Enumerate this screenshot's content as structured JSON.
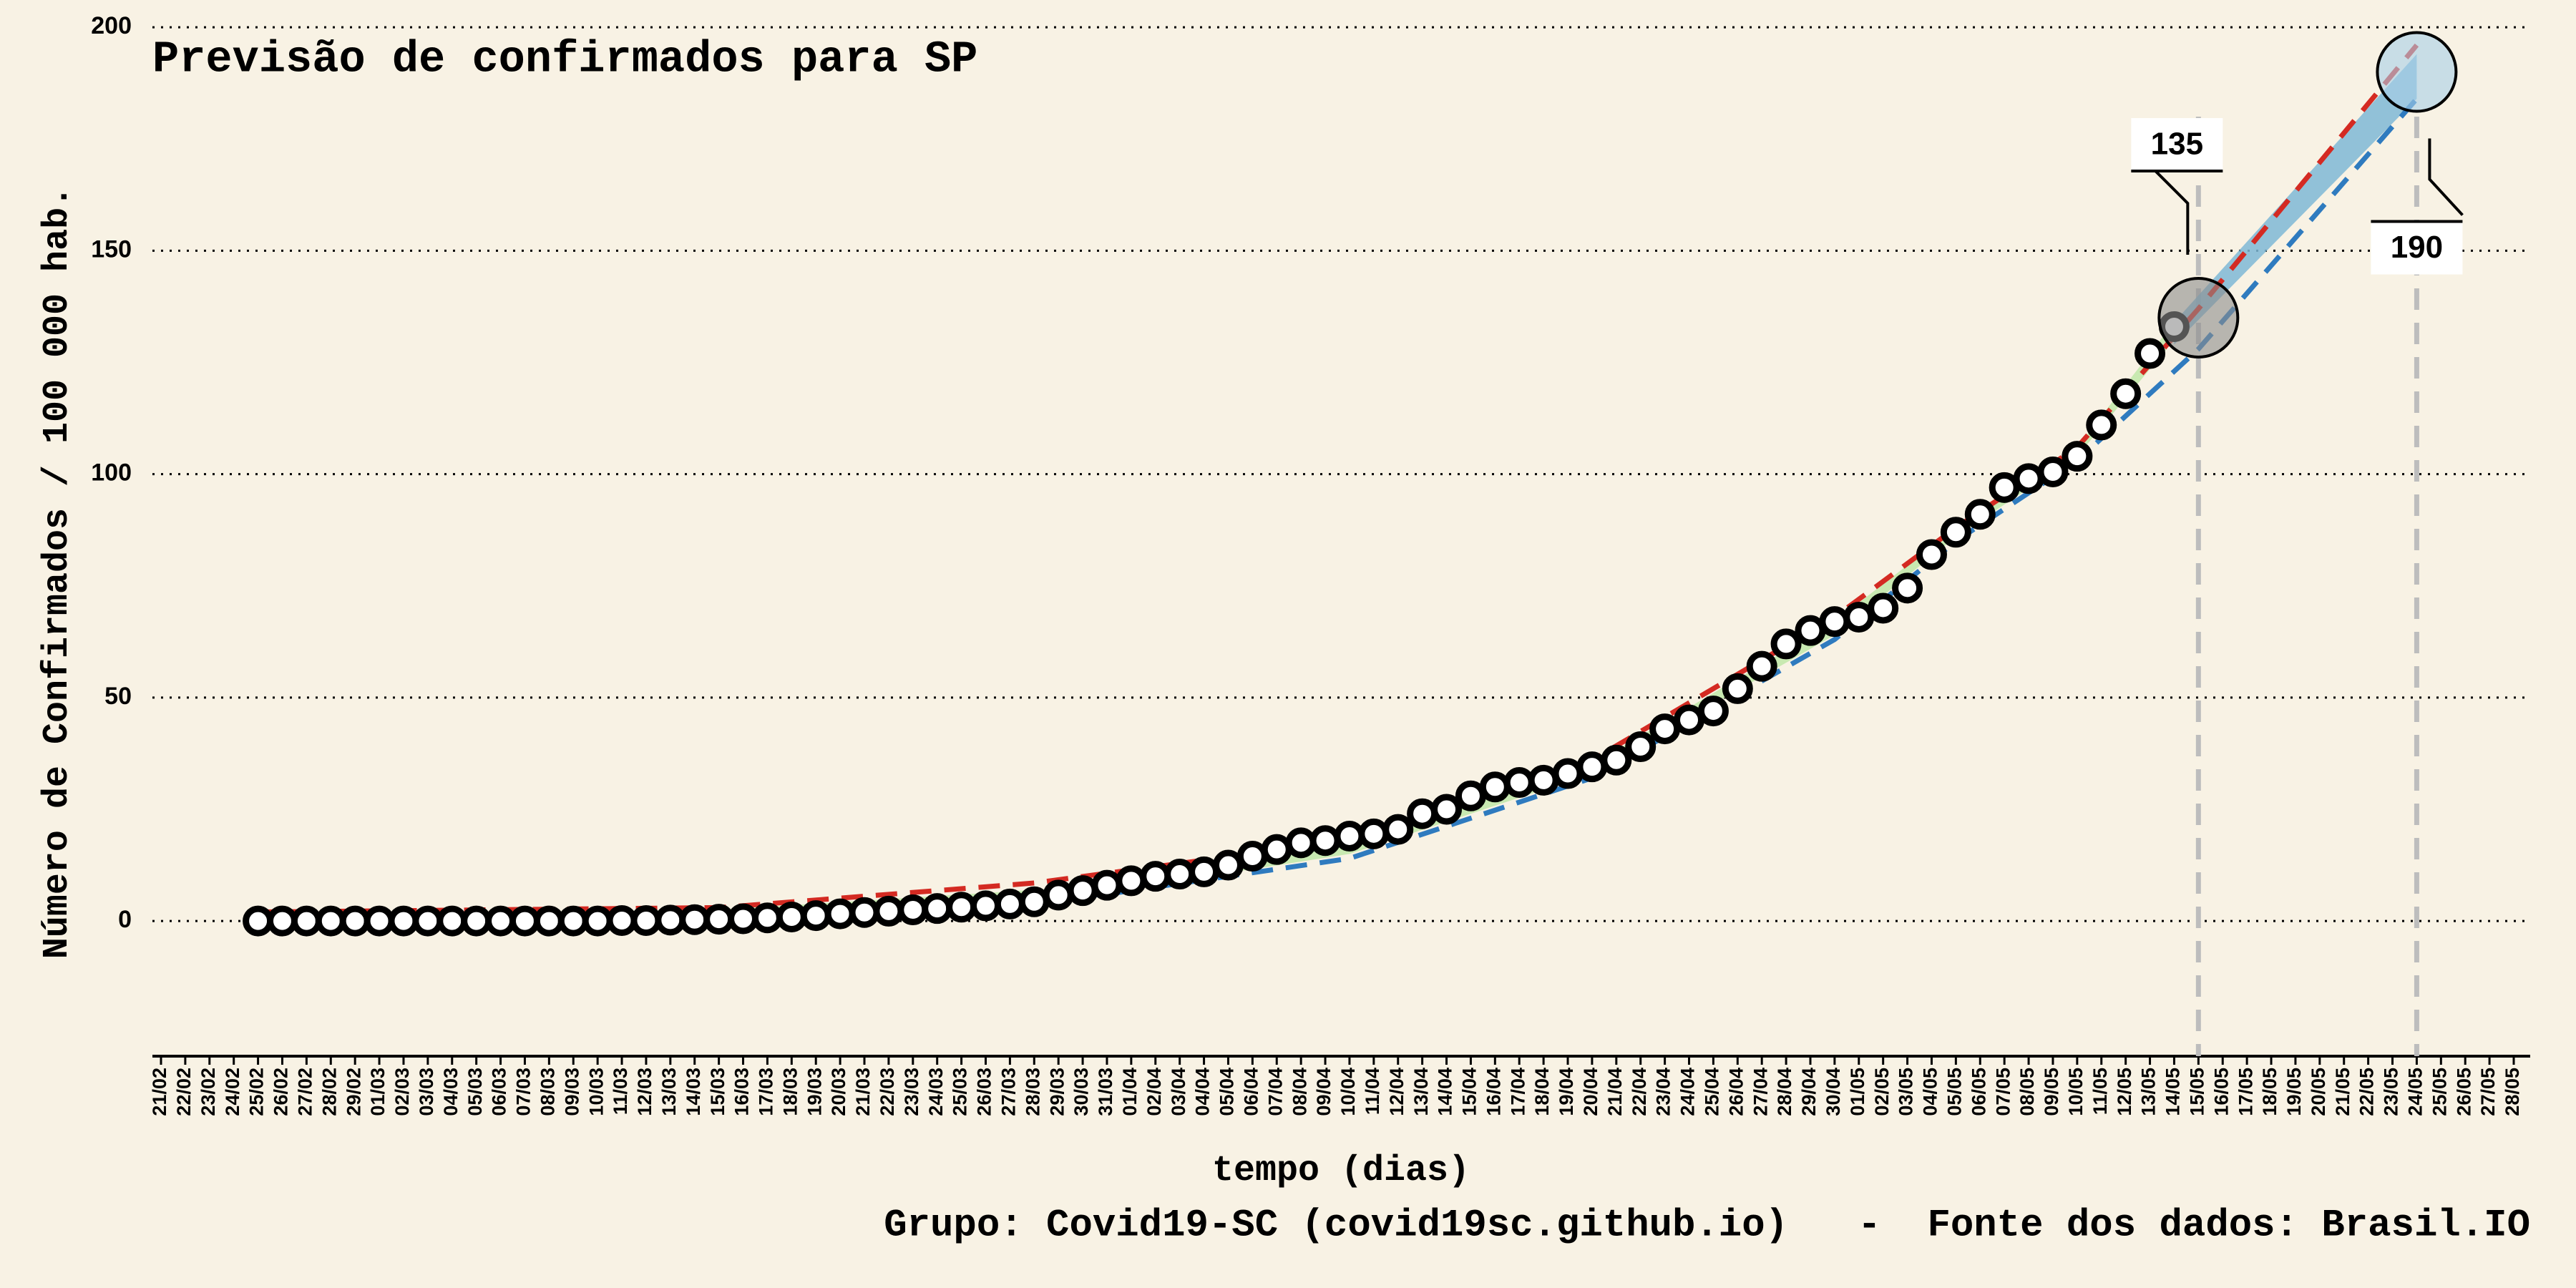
{
  "chart_data": {
    "type": "line",
    "title": "Previsão de confirmados para SP",
    "y_label": "Número de Confirmados / 100 000 hab.",
    "x_label": "tempo (dias)",
    "footer": "Grupo: Covid19-SC (covid19sc.github.io)   -  Fonte dos dados: Brasil.IO",
    "categories": [
      "21/02",
      "22/02",
      "23/02",
      "24/02",
      "25/02",
      "26/02",
      "27/02",
      "28/02",
      "29/02",
      "01/03",
      "02/03",
      "03/03",
      "04/03",
      "05/03",
      "06/03",
      "07/03",
      "08/03",
      "09/03",
      "10/03",
      "11/03",
      "12/03",
      "13/03",
      "14/03",
      "15/03",
      "16/03",
      "17/03",
      "18/03",
      "19/03",
      "20/03",
      "21/03",
      "22/03",
      "23/03",
      "24/03",
      "25/03",
      "26/03",
      "27/03",
      "28/03",
      "29/03",
      "30/03",
      "31/03",
      "01/04",
      "02/04",
      "03/04",
      "04/04",
      "05/04",
      "06/04",
      "07/04",
      "08/04",
      "09/04",
      "10/04",
      "11/04",
      "12/04",
      "13/04",
      "14/04",
      "15/04",
      "16/04",
      "17/04",
      "18/04",
      "19/04",
      "20/04",
      "21/04",
      "22/04",
      "23/04",
      "24/04",
      "25/04",
      "26/04",
      "27/04",
      "28/04",
      "29/04",
      "30/04",
      "01/05",
      "02/05",
      "03/05",
      "04/05",
      "05/05",
      "06/05",
      "07/05",
      "08/05",
      "09/05",
      "10/05",
      "11/05",
      "12/05",
      "13/05",
      "14/05",
      "15/05",
      "16/05",
      "17/05",
      "18/05",
      "19/05",
      "20/05",
      "21/05",
      "22/05",
      "23/05",
      "24/05",
      "25/05",
      "26/05",
      "27/05",
      "28/05"
    ],
    "observed": {
      "color": "#ffffff",
      "edge_color": "#000000",
      "values": [
        null,
        null,
        null,
        null,
        0,
        0,
        0,
        0,
        0,
        0,
        0,
        0,
        0,
        0,
        0,
        0,
        0,
        0,
        0,
        0.1,
        0.1,
        0.2,
        0.3,
        0.4,
        0.5,
        0.7,
        0.9,
        1.2,
        1.6,
        1.9,
        2.2,
        2.5,
        2.8,
        3.1,
        3.4,
        3.8,
        4.3,
        5.8,
        6.8,
        8,
        9,
        10,
        10.5,
        11,
        12.5,
        14.5,
        16,
        17.5,
        18,
        19,
        19.5,
        20.5,
        24,
        25,
        28,
        30,
        31,
        31.5,
        33,
        34.5,
        36,
        39,
        43,
        45,
        47,
        52,
        57,
        62,
        65,
        67,
        68,
        70,
        74.5,
        82,
        87,
        91,
        97,
        99,
        100.5,
        104,
        111,
        118,
        127,
        133,
        null,
        null,
        null,
        null,
        null,
        null,
        null,
        null,
        null,
        null,
        null,
        null,
        null,
        null
      ]
    },
    "upper": {
      "color": "#d42a22",
      "x": [
        "25/02",
        "15/03",
        "28/03",
        "10/04",
        "20/04",
        "30/04",
        "05/05",
        "10/05",
        "15/05",
        "24/05"
      ],
      "values": [
        2,
        3,
        8.5,
        18,
        36,
        68,
        88,
        106,
        137,
        196
      ]
    },
    "lower": {
      "color": "#2f7bbf",
      "x": [
        "25/02",
        "15/03",
        "31/03",
        "10/04",
        "20/04",
        "30/04",
        "05/05",
        "10/05",
        "15/05",
        "24/05"
      ],
      "values": [
        0,
        0.5,
        6,
        14,
        32,
        63,
        85,
        103,
        128,
        184
      ]
    },
    "fit_band": {
      "color": "#bfe8a8",
      "x": [
        "25/02",
        "15/03",
        "31/03",
        "10/04",
        "20/04",
        "30/04",
        "05/05",
        "10/05",
        "14/05"
      ],
      "low": [
        0,
        0.5,
        6.5,
        15,
        33,
        64,
        86,
        104,
        130
      ],
      "high": [
        1.5,
        2.5,
        8,
        17,
        35,
        67,
        88,
        106,
        134
      ]
    },
    "forecast_band": {
      "color": "#7fb8d6",
      "x": [
        "14/05",
        "24/05"
      ],
      "low": [
        129,
        184
      ],
      "high": [
        134,
        194
      ]
    },
    "highlights": [
      {
        "x": "15/05",
        "value": 135,
        "color": "#8c8c8c"
      },
      {
        "x": "24/05",
        "value": 190,
        "color": "#a9cfe8"
      }
    ],
    "ylim": [
      -10,
      205
    ],
    "yticks": [
      0,
      50,
      100,
      150,
      200
    ],
    "grid": true
  }
}
